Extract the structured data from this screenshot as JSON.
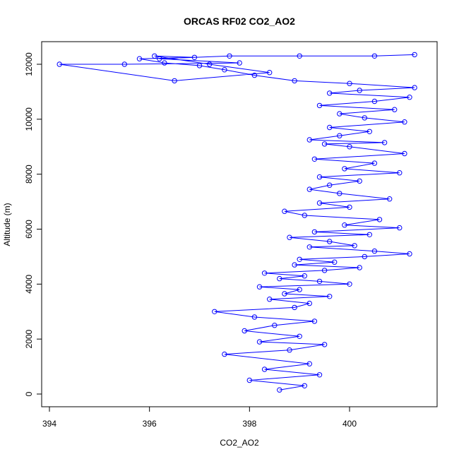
{
  "chart_data": {
    "type": "scatter",
    "title": "ORCAS RF02 CO2_AO2",
    "xlabel": "CO2_AO2",
    "ylabel": "Altitude (m)",
    "xlim": [
      394,
      401.5
    ],
    "ylim": [
      0,
      12600
    ],
    "xticks": [
      394,
      396,
      398,
      400
    ],
    "yticks": [
      0,
      2000,
      4000,
      6000,
      8000,
      10000,
      12000
    ],
    "grid": false,
    "legend": "none",
    "colors": {
      "series": "#0000ff",
      "frame": "#000000"
    },
    "series": [
      {
        "style": "line-with-open-circles",
        "x": [
          398.6,
          399.1,
          398.0,
          399.4,
          398.3,
          399.2,
          397.5,
          398.8,
          399.5,
          398.2,
          399.0,
          397.9,
          398.5,
          399.3,
          398.1,
          397.3,
          398.9,
          399.2,
          398.4,
          399.6,
          398.7,
          399.0,
          398.2,
          400.0,
          399.4,
          398.6,
          399.1,
          398.3,
          399.5,
          400.2,
          398.9,
          399.7,
          399.0,
          400.3,
          401.2,
          400.5,
          399.2,
          400.1,
          399.6,
          398.8,
          400.4,
          399.3,
          401.0,
          399.9,
          400.6,
          399.1,
          398.7,
          400.0,
          399.4,
          400.8,
          399.8,
          399.2,
          399.6,
          400.2,
          399.4,
          401.0,
          399.9,
          400.5,
          399.3,
          401.1,
          400.0,
          399.5,
          400.7,
          399.2,
          399.8,
          400.4,
          399.6,
          401.1,
          400.3,
          399.8,
          400.9,
          399.4,
          400.5,
          401.2,
          399.6,
          400.2,
          401.3,
          400.0,
          398.9,
          398.1,
          397.5,
          397.0,
          396.3,
          395.8,
          396.9,
          396.1,
          397.2,
          398.4,
          396.5,
          394.2,
          395.5,
          397.8,
          396.2,
          397.6,
          399.0,
          400.5,
          401.3
        ],
        "y": [
          150,
          300,
          500,
          700,
          900,
          1100,
          1450,
          1600,
          1800,
          1900,
          2100,
          2300,
          2500,
          2650,
          2800,
          3000,
          3150,
          3300,
          3450,
          3550,
          3650,
          3800,
          3900,
          4000,
          4100,
          4200,
          4300,
          4400,
          4500,
          4600,
          4700,
          4800,
          4900,
          5000,
          5100,
          5200,
          5350,
          5400,
          5550,
          5700,
          5800,
          5900,
          6050,
          6150,
          6350,
          6500,
          6650,
          6800,
          6950,
          7100,
          7300,
          7450,
          7600,
          7750,
          7900,
          8050,
          8200,
          8400,
          8550,
          8750,
          9000,
          9100,
          9150,
          9250,
          9400,
          9550,
          9700,
          9900,
          10050,
          10200,
          10350,
          10500,
          10650,
          10800,
          10950,
          11050,
          11150,
          11300,
          11400,
          11600,
          11800,
          11950,
          12050,
          12200,
          12250,
          12300,
          12000,
          11700,
          11400,
          12000,
          12000,
          12050,
          12200,
          12300,
          12300,
          12300,
          12350
        ]
      }
    ]
  }
}
